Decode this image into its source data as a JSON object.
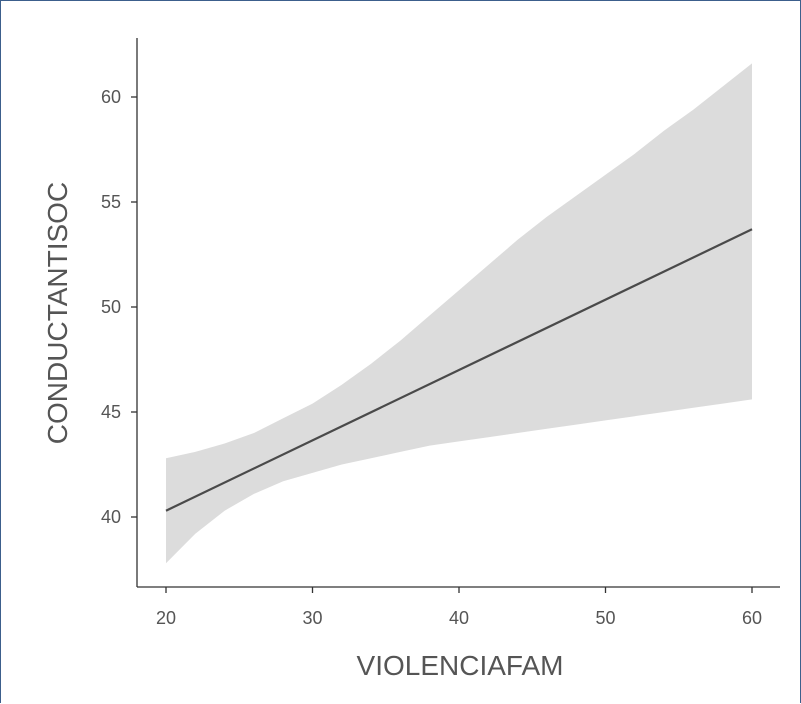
{
  "chart_data": {
    "type": "line",
    "xlabel": "VIOLENCIAFAM",
    "ylabel": "CONDUCTANTISOC",
    "xlim": [
      18,
      62
    ],
    "ylim": [
      36.7,
      63
    ],
    "x_ticks": [
      20,
      30,
      40,
      50,
      60
    ],
    "y_ticks": [
      40,
      45,
      50,
      55,
      60
    ],
    "grid": false,
    "colors": {
      "band": "#dcdcdc",
      "line": "#4a4a4a",
      "axis": "#333333",
      "text": "#555555"
    },
    "series": [
      {
        "type": "line",
        "x": [
          20,
          60
        ],
        "y": [
          40.3,
          53.7
        ]
      },
      {
        "type": "confidence_band",
        "x": [
          20,
          22,
          24,
          26,
          28,
          30,
          32,
          34,
          36,
          38,
          40,
          42,
          44,
          46,
          48,
          50,
          52,
          54,
          56,
          58,
          60
        ],
        "lower": [
          37.8,
          39.2,
          40.3,
          41.1,
          41.7,
          42.1,
          42.5,
          42.8,
          43.1,
          43.4,
          43.6,
          43.8,
          44.0,
          44.2,
          44.4,
          44.6,
          44.8,
          45.0,
          45.2,
          45.4,
          45.6
        ],
        "upper": [
          42.8,
          43.1,
          43.5,
          44.0,
          44.7,
          45.4,
          46.3,
          47.3,
          48.4,
          49.6,
          50.8,
          52.0,
          53.2,
          54.3,
          55.3,
          56.3,
          57.3,
          58.4,
          59.4,
          60.5,
          61.6
        ]
      }
    ]
  }
}
